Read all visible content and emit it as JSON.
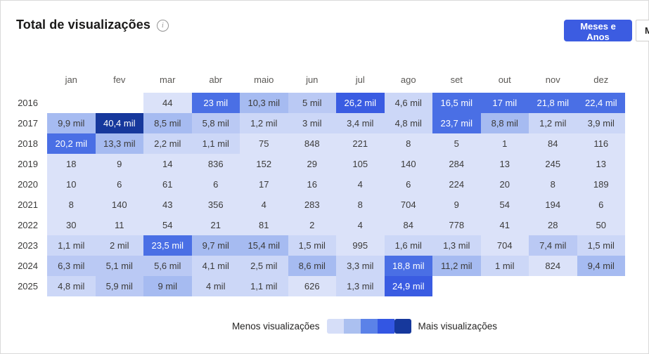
{
  "header": {
    "title": "Total de visualizações",
    "info_icon": "i",
    "toggle": {
      "active_label": "Meses e Anos",
      "partial_label": "M"
    }
  },
  "heatmap": {
    "months": [
      "jan",
      "fev",
      "mar",
      "abr",
      "maio",
      "jun",
      "jul",
      "ago",
      "set",
      "out",
      "nov",
      "dez"
    ],
    "palette": [
      "#ffffff",
      "#dbe2f9",
      "#ccd7f7",
      "#bac9f4",
      "#a6bbf1",
      "#4a6fe5",
      "#3a5ce2",
      "#16389c"
    ],
    "text_dark": "#3b3a39",
    "text_light": "#ffffff",
    "white_text_from_level": 5,
    "rows": [
      {
        "year": "2016",
        "labels": [
          "",
          "",
          "44",
          "23 mil",
          "10,3 mil",
          "5 mil",
          "26,2 mil",
          "4,6 mil",
          "16,5 mil",
          "17 mil",
          "21,8 mil",
          "22,4 mil"
        ],
        "levels": [
          0,
          0,
          1,
          5,
          4,
          3,
          6,
          2,
          5,
          5,
          5,
          5
        ]
      },
      {
        "year": "2017",
        "labels": [
          "9,9 mil",
          "40,4 mil",
          "8,5 mil",
          "5,8 mil",
          "1,2 mil",
          "3 mil",
          "3,4 mil",
          "4,8 mil",
          "23,7 mil",
          "8,8 mil",
          "1,2 mil",
          "3,9 mil"
        ],
        "levels": [
          4,
          7,
          4,
          3,
          2,
          2,
          2,
          2,
          5,
          4,
          2,
          2
        ]
      },
      {
        "year": "2018",
        "labels": [
          "20,2 mil",
          "13,3 mil",
          "2,2 mil",
          "1,1 mil",
          "75",
          "848",
          "221",
          "8",
          "5",
          "1",
          "84",
          "116"
        ],
        "levels": [
          5,
          4,
          2,
          2,
          1,
          1,
          1,
          1,
          1,
          1,
          1,
          1
        ]
      },
      {
        "year": "2019",
        "labels": [
          "18",
          "9",
          "14",
          "836",
          "152",
          "29",
          "105",
          "140",
          "284",
          "13",
          "245",
          "13"
        ],
        "levels": [
          1,
          1,
          1,
          1,
          1,
          1,
          1,
          1,
          1,
          1,
          1,
          1
        ]
      },
      {
        "year": "2020",
        "labels": [
          "10",
          "6",
          "61",
          "6",
          "17",
          "16",
          "4",
          "6",
          "224",
          "20",
          "8",
          "189"
        ],
        "levels": [
          1,
          1,
          1,
          1,
          1,
          1,
          1,
          1,
          1,
          1,
          1,
          1
        ]
      },
      {
        "year": "2021",
        "labels": [
          "8",
          "140",
          "43",
          "356",
          "4",
          "283",
          "8",
          "704",
          "9",
          "54",
          "194",
          "6"
        ],
        "levels": [
          1,
          1,
          1,
          1,
          1,
          1,
          1,
          1,
          1,
          1,
          1,
          1
        ]
      },
      {
        "year": "2022",
        "labels": [
          "30",
          "11",
          "54",
          "21",
          "81",
          "2",
          "4",
          "84",
          "778",
          "41",
          "28",
          "50"
        ],
        "levels": [
          1,
          1,
          1,
          1,
          1,
          1,
          1,
          1,
          1,
          1,
          1,
          1
        ]
      },
      {
        "year": "2023",
        "labels": [
          "1,1 mil",
          "2 mil",
          "23,5 mil",
          "9,7 mil",
          "15,4 mil",
          "1,5 mil",
          "995",
          "1,6 mil",
          "1,3 mil",
          "704",
          "7,4 mil",
          "1,5 mil"
        ],
        "levels": [
          2,
          2,
          5,
          4,
          4,
          2,
          1,
          2,
          2,
          1,
          3,
          2
        ]
      },
      {
        "year": "2024",
        "labels": [
          "6,3 mil",
          "5,1 mil",
          "5,6 mil",
          "4,1 mil",
          "2,5 mil",
          "8,6 mil",
          "3,3 mil",
          "18,8 mil",
          "11,2 mil",
          "1 mil",
          "824",
          "9,4 mil"
        ],
        "levels": [
          3,
          3,
          3,
          2,
          2,
          4,
          2,
          5,
          4,
          2,
          1,
          4
        ]
      },
      {
        "year": "2025",
        "labels": [
          "4,8 mil",
          "5,9 mil",
          "9 mil",
          "4 mil",
          "1,1 mil",
          "626",
          "1,3 mil",
          "24,9 mil",
          "",
          "",
          "",
          ""
        ],
        "levels": [
          2,
          3,
          4,
          2,
          2,
          1,
          2,
          6,
          0,
          0,
          0,
          0
        ]
      }
    ]
  },
  "legend": {
    "less_label": "Menos visualizações",
    "more_label": "Mais visualizações",
    "swatches": [
      "#d6def8",
      "#abc0f0",
      "#5b82e8",
      "#3356e3",
      "#16389c"
    ]
  },
  "chart_data": {
    "type": "heatmap",
    "title": "Total de visualizações",
    "x": [
      "jan",
      "fev",
      "mar",
      "abr",
      "maio",
      "jun",
      "jul",
      "ago",
      "set",
      "out",
      "nov",
      "dez"
    ],
    "y": [
      "2016",
      "2017",
      "2018",
      "2019",
      "2020",
      "2021",
      "2022",
      "2023",
      "2024",
      "2025"
    ],
    "values": [
      [
        null,
        null,
        44,
        23000,
        10300,
        5000,
        26200,
        4600,
        16500,
        17000,
        21800,
        22400
      ],
      [
        9900,
        40400,
        8500,
        5800,
        1200,
        3000,
        3400,
        4800,
        23700,
        8800,
        1200,
        3900
      ],
      [
        20200,
        13300,
        2200,
        1100,
        75,
        848,
        221,
        8,
        5,
        1,
        84,
        116
      ],
      [
        18,
        9,
        14,
        836,
        152,
        29,
        105,
        140,
        284,
        13,
        245,
        13
      ],
      [
        10,
        6,
        61,
        6,
        17,
        16,
        4,
        6,
        224,
        20,
        8,
        189
      ],
      [
        8,
        140,
        43,
        356,
        4,
        283,
        8,
        704,
        9,
        54,
        194,
        6
      ],
      [
        30,
        11,
        54,
        21,
        81,
        2,
        4,
        84,
        778,
        41,
        28,
        50
      ],
      [
        1100,
        2000,
        23500,
        9700,
        15400,
        1500,
        995,
        1600,
        1300,
        704,
        7400,
        1500
      ],
      [
        6300,
        5100,
        5600,
        4100,
        2500,
        8600,
        3300,
        18800,
        11200,
        1000,
        824,
        9400
      ],
      [
        4800,
        5900,
        9000,
        4000,
        1100,
        626,
        1300,
        24900,
        null,
        null,
        null,
        null
      ]
    ],
    "legend": {
      "min_label": "Menos visualizações",
      "max_label": "Mais visualizações",
      "position": "bottom"
    },
    "colorscale": [
      "#d6def8",
      "#abc0f0",
      "#5b82e8",
      "#3356e3",
      "#16389c"
    ]
  }
}
